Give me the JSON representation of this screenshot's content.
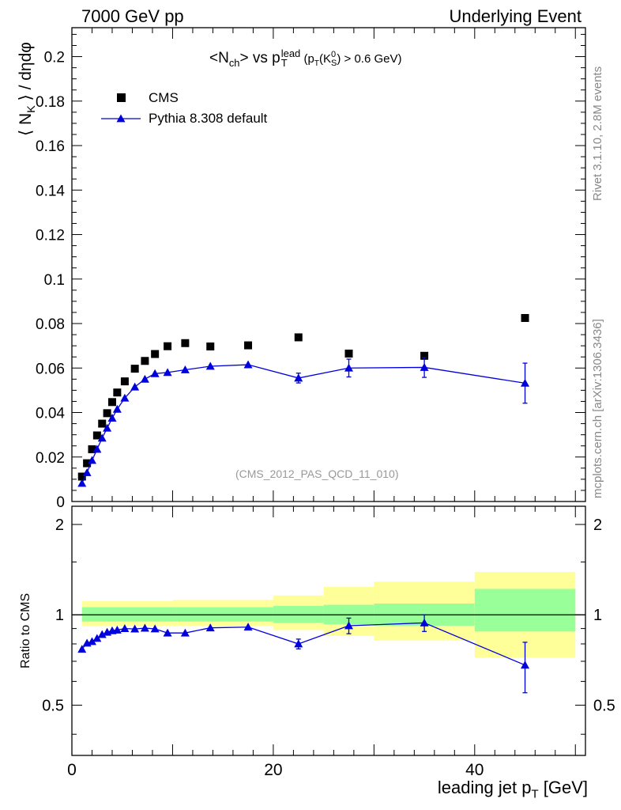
{
  "header": {
    "left": "7000 GeV pp",
    "right": "Underlying Event"
  },
  "side_text": {
    "rivet": "Rivet 3.1.10,  2.8M events",
    "mcplots": "mcplots.cern.ch [arXiv:1306.3436]"
  },
  "colors": {
    "data": "#000000",
    "mc": "#0000dd",
    "band_stat": "#99ff99",
    "band_total": "#ffff99"
  },
  "chart_data": [
    {
      "type": "scatter",
      "title_parts": {
        "a": "<N",
        "a_sub": "ch",
        "b": "> vs p",
        "b_sub": "T",
        "b_sup": "lead",
        "c": " (p",
        "c_sub": "T",
        "d": "(K",
        "d_sup": "0",
        "d_sub": "S",
        "e": ") > 0.6 GeV)"
      },
      "ylabel_parts": {
        "a": "⟨ N",
        "a_sub": "K",
        "b": " ⟩ / dηdφ"
      },
      "annotation": "(CMS_2012_PAS_QCD_11_010)",
      "xlim": [
        0,
        51
      ],
      "ylim": [
        0,
        0.213
      ],
      "y_ticks": [
        "0",
        "0.02",
        "0.04",
        "0.06",
        "0.08",
        "0.1",
        "0.12",
        "0.14",
        "0.16",
        "0.18",
        "0.2"
      ],
      "legend": {
        "position": "top-left"
      },
      "series": [
        {
          "name": "CMS",
          "marker": "square",
          "x": [
            1,
            1.5,
            2,
            2.5,
            3,
            3.5,
            4,
            4.5,
            5.25,
            6.25,
            7.25,
            8.25,
            9.5,
            11.25,
            13.75,
            17.5,
            22.5,
            27.5,
            35,
            45
          ],
          "y": [
            0.0112,
            0.0172,
            0.0235,
            0.0297,
            0.035,
            0.0397,
            0.0447,
            0.049,
            0.054,
            0.0597,
            0.0632,
            0.0663,
            0.0698,
            0.0712,
            0.0697,
            0.0702,
            0.0738,
            0.0665,
            0.0655,
            0.0825
          ]
        },
        {
          "name": "Pythia 8.308 default",
          "marker": "triangle",
          "x": [
            1,
            1.5,
            2,
            2.5,
            3,
            3.5,
            4,
            4.5,
            5.25,
            6.25,
            7.25,
            8.25,
            9.5,
            11.25,
            13.75,
            17.5,
            22.5,
            27.5,
            35,
            45
          ],
          "y": [
            0.0082,
            0.013,
            0.0185,
            0.0235,
            0.0285,
            0.033,
            0.0375,
            0.0415,
            0.0465,
            0.0515,
            0.055,
            0.0575,
            0.058,
            0.0592,
            0.0608,
            0.0615,
            0.0555,
            0.06,
            0.0603,
            0.0532
          ],
          "yerr": [
            0,
            0,
            0,
            0,
            0,
            0,
            0,
            0,
            0,
            0,
            0,
            0,
            0,
            0,
            0,
            0,
            0.0022,
            0.004,
            0.0045,
            0.009
          ]
        }
      ]
    },
    {
      "type": "line",
      "ylabel": "Ratio to CMS",
      "xlabel_parts": {
        "a": "leading jet p",
        "a_sub": "T",
        "b": " [GeV]"
      },
      "xlim": [
        0,
        51
      ],
      "ylim": [
        0.34,
        2.3
      ],
      "y_ticks_major": [
        "0.5",
        "1",
        "2"
      ],
      "x_ticks": [
        "0",
        "20",
        "40"
      ],
      "bands": {
        "edges": [
          1,
          10,
          20,
          25,
          30,
          40,
          50
        ],
        "stat_low": [
          0.95,
          0.95,
          0.94,
          0.93,
          0.92,
          0.88
        ],
        "stat_high": [
          1.06,
          1.06,
          1.07,
          1.08,
          1.09,
          1.22
        ],
        "total_low": [
          0.92,
          0.92,
          0.89,
          0.85,
          0.82,
          0.72
        ],
        "total_high": [
          1.11,
          1.12,
          1.16,
          1.24,
          1.29,
          1.39
        ]
      },
      "series": [
        {
          "name": "Pythia 8.308 default",
          "x": [
            1,
            1.5,
            2,
            2.5,
            3,
            3.5,
            4,
            4.5,
            5.25,
            6.25,
            7.25,
            8.25,
            9.5,
            11.25,
            13.75,
            17.5,
            22.5,
            27.5,
            35,
            45
          ],
          "y": [
            0.768,
            0.805,
            0.815,
            0.835,
            0.86,
            0.875,
            0.885,
            0.89,
            0.9,
            0.897,
            0.903,
            0.898,
            0.87,
            0.87,
            0.905,
            0.91,
            0.8,
            0.92,
            0.94,
            0.68
          ],
          "yerr": [
            0,
            0,
            0,
            0,
            0,
            0,
            0,
            0,
            0,
            0,
            0,
            0,
            0,
            0,
            0,
            0,
            0.03,
            0.055,
            0.06,
            0.13
          ]
        }
      ]
    }
  ]
}
